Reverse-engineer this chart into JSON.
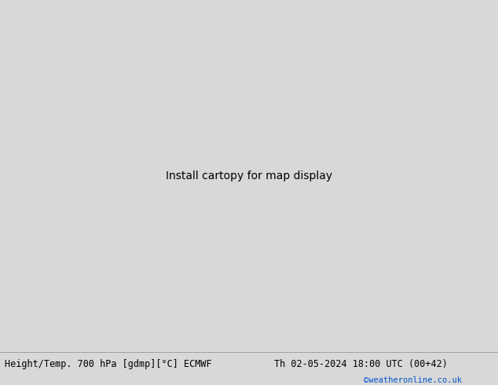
{
  "title_left": "Height/Temp. 700 hPa [gdmp][°C] ECMWF",
  "title_right": "Th 02-05-2024 18:00 UTC (00+42)",
  "credit": "©weatheronline.co.uk",
  "background_color": "#d8d8d8",
  "land_green_color": "#b8e8a8",
  "ocean_color": "#d8d8d8",
  "contour_black": "#000000",
  "contour_pink": "#e0008f",
  "contour_red": "#cc2200",
  "border_gray": "#a0a8a0",
  "footer_fontsize": 8.5,
  "credit_color": "#0055cc",
  "fig_width": 6.34,
  "fig_height": 4.9,
  "dpi": 100,
  "lon_min": -20,
  "lon_max": 60,
  "lat_min": -48,
  "lat_max": 42
}
